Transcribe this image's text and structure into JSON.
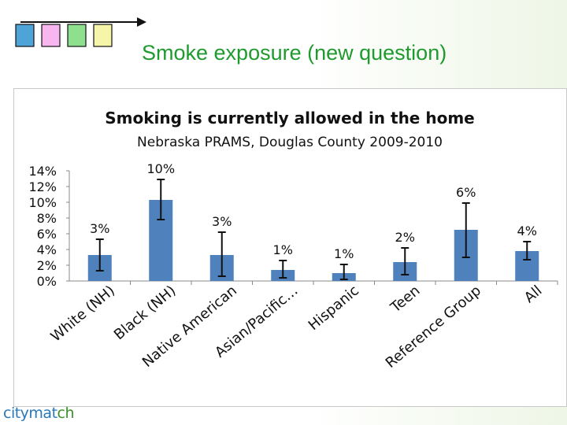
{
  "slide": {
    "title": "Smoke exposure (new question)",
    "square_colors": [
      "#4ea3d8",
      "#f7b6f0",
      "#8ee08e",
      "#f6f6a8"
    ],
    "logo": {
      "part1": "citymat",
      "part2": "ch"
    }
  },
  "chart_data": {
    "type": "bar",
    "title": "Smoking is currently allowed in the home",
    "subtitle": "Nebraska PRAMS, Douglas County 2009-2010",
    "categories": [
      "White (NH)",
      "Black (NH)",
      "Native American",
      "Asian/Pacific…",
      "Hispanic",
      "Teen",
      "Reference Group",
      "All"
    ],
    "values": [
      3.3,
      10.3,
      3.3,
      1.4,
      1.0,
      2.4,
      6.5,
      3.8
    ],
    "error_low": [
      1.3,
      7.8,
      0.6,
      0.4,
      0.2,
      0.8,
      3.0,
      2.7
    ],
    "error_high": [
      5.3,
      12.9,
      6.2,
      2.6,
      2.1,
      4.2,
      9.9,
      5.0
    ],
    "data_labels": [
      "3%",
      "10%",
      "3%",
      "1%",
      "1%",
      "2%",
      "6%",
      "4%"
    ],
    "yticks": [
      "0%",
      "2%",
      "4%",
      "6%",
      "8%",
      "10%",
      "12%",
      "14%"
    ],
    "ylim": [
      0,
      14
    ],
    "bar_color": "#4f81bd",
    "grid": false,
    "legend": "none"
  }
}
